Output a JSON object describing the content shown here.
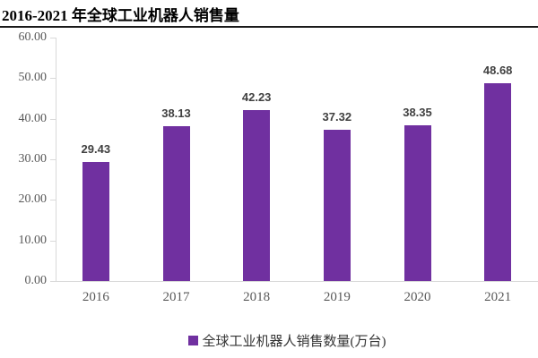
{
  "header": {
    "title": "2016-2021 年全球工业机器人销售量"
  },
  "chart_data": {
    "type": "bar",
    "title": "2016-2021 年全球工业机器人销售量",
    "categories": [
      "2016",
      "2017",
      "2018",
      "2019",
      "2020",
      "2021"
    ],
    "values": [
      29.43,
      38.13,
      42.23,
      37.32,
      38.35,
      48.68
    ],
    "data_labels": [
      "29.43",
      "38.13",
      "42.23",
      "37.32",
      "38.35",
      "48.68"
    ],
    "xlabel": "",
    "ylabel": "",
    "ylim": [
      0,
      60
    ],
    "ytick_step": 10,
    "yticks_bottom_to_top": [
      "0.00",
      "10.00",
      "20.00",
      "30.00",
      "40.00",
      "50.00",
      "60.00"
    ],
    "grid": false,
    "legend": {
      "position": "bottom",
      "entries": [
        {
          "label": "全球工业机器人销售数量(万台)",
          "marker": "square",
          "color": "#7030A0"
        }
      ]
    },
    "colors": {
      "bar": "#7030A0",
      "axis": "#D9D9D9",
      "axis_tick_labels": "#595959",
      "data_labels": "#404040",
      "title": "#000000",
      "title_rule": "#1A1A1A",
      "legend_text": "#333333",
      "background": "#FFFFFF"
    }
  }
}
